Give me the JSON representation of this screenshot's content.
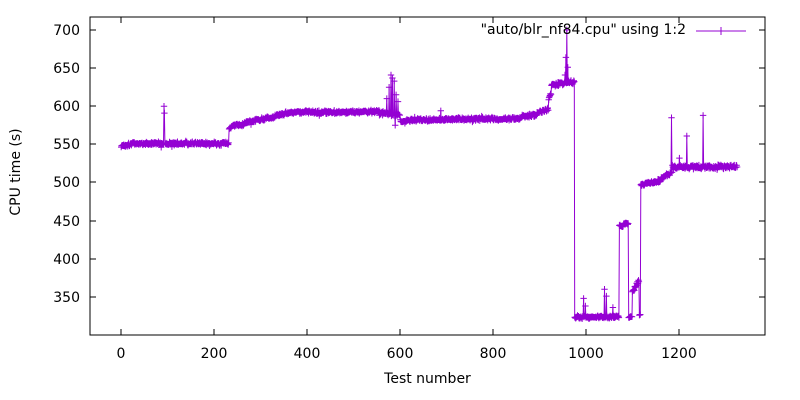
{
  "chart_data": {
    "type": "line",
    "mode": "linespoints",
    "marker": "plus",
    "title": "",
    "xlabel": "Test number",
    "ylabel": "CPU time (s)",
    "legend_label": "\"auto/blr_nf84.cpu\" using 1:2",
    "legend_position": "top-right-inside",
    "series_color": "#9400D3",
    "axis_color": "#000000",
    "background_color": "#ffffff",
    "xlim": [
      -66,
      1385
    ],
    "ylim": [
      300,
      717
    ],
    "x_ticks": [
      0,
      200,
      400,
      600,
      800,
      1000,
      1200
    ],
    "y_ticks": [
      350,
      400,
      450,
      500,
      550,
      600,
      650,
      700
    ],
    "grid": false,
    "x_increment": 1,
    "noise_seed": 1337,
    "series_segments": [
      [
        1,
        20,
        548,
        550,
        2.5
      ],
      [
        20,
        233,
        551,
        551,
        2.8
      ],
      [
        233,
        238,
        571,
        571,
        1.5
      ],
      [
        238,
        266,
        574,
        576,
        2.2
      ],
      [
        266,
        332,
        578,
        587,
        2.5
      ],
      [
        332,
        366,
        588,
        592,
        2.5
      ],
      [
        366,
        556,
        592,
        593,
        2.6
      ],
      [
        556,
        601,
        591,
        589,
        3.2
      ],
      [
        601,
        613,
        581,
        579,
        2.2
      ],
      [
        613,
        860,
        582,
        584,
        2.6
      ],
      [
        860,
        895,
        586,
        589,
        2.4
      ],
      [
        895,
        920,
        592,
        596,
        2.6
      ],
      [
        920,
        926,
        608,
        620,
        3
      ],
      [
        926,
        976,
        628,
        632,
        3
      ],
      [
        976,
        1072,
        323,
        324,
        2
      ],
      [
        1072,
        1081,
        443,
        443,
        1.6
      ],
      [
        1081,
        1092,
        446,
        446,
        1.6
      ],
      [
        1092,
        1100,
        323,
        325,
        1.8
      ],
      [
        1100,
        1115,
        357,
        373,
        3
      ],
      [
        1115,
        1118,
        325,
        327,
        2
      ],
      [
        1118,
        1162,
        497,
        503,
        3
      ],
      [
        1162,
        1186,
        505,
        514,
        3
      ],
      [
        1186,
        1326,
        520,
        521,
        3.2
      ]
    ],
    "series_spikes": [
      [
        93,
        600
      ],
      [
        94,
        591
      ],
      [
        572,
        610
      ],
      [
        577,
        625
      ],
      [
        581,
        641
      ],
      [
        584,
        637
      ],
      [
        588,
        633
      ],
      [
        590,
        575
      ],
      [
        592,
        615
      ],
      [
        596,
        606
      ],
      [
        688,
        594
      ],
      [
        955,
        641
      ],
      [
        957,
        664
      ],
      [
        959,
        700
      ],
      [
        961,
        651
      ],
      [
        995,
        348
      ],
      [
        999,
        338
      ],
      [
        1040,
        360
      ],
      [
        1044,
        351
      ],
      [
        1058,
        336
      ],
      [
        1184,
        585
      ],
      [
        1201,
        532
      ],
      [
        1217,
        561
      ],
      [
        1252,
        588
      ]
    ]
  }
}
